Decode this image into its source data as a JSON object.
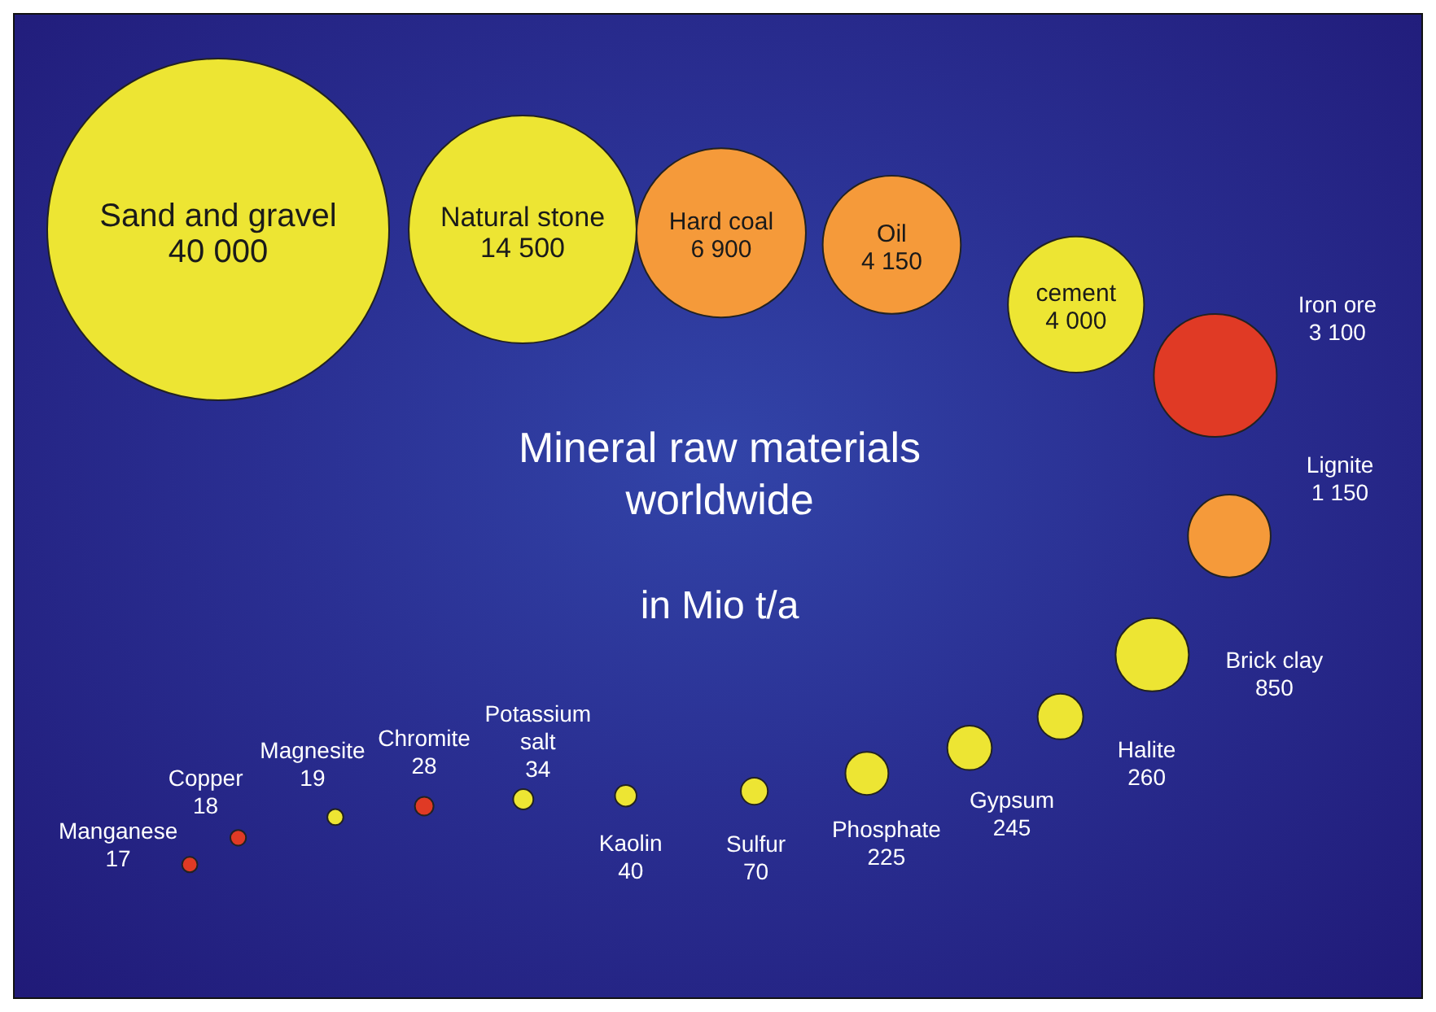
{
  "chart_data": {
    "type": "other",
    "title": "Mineral raw materials worldwide",
    "subtitle": "in Mio t/a",
    "categories": [
      "Sand and gravel",
      "Natural stone",
      "Hard coal",
      "Oil",
      "cement",
      "Iron ore",
      "Lignite",
      "Brick clay",
      "Halite",
      "Gypsum",
      "Phosphate",
      "Sulfur",
      "Kaolin",
      "Potassium salt",
      "Chromite",
      "Magnesite",
      "Copper",
      "Manganese"
    ],
    "values": [
      40000,
      14500,
      6900,
      4150,
      4000,
      3100,
      1150,
      850,
      260,
      245,
      225,
      70,
      40,
      34,
      28,
      19,
      18,
      17
    ],
    "value_labels": [
      "40 000",
      "14 500",
      "6 900",
      "4 150",
      "4 000",
      "3 100",
      "1 150",
      "850",
      "260",
      "245",
      "225",
      "70",
      "40",
      "34",
      "28",
      "19",
      "18",
      "17"
    ],
    "colors": [
      "#ede533",
      "#ede533",
      "#f59a3a",
      "#f59a3a",
      "#ede533",
      "#e03a25",
      "#f59a3a",
      "#ede533",
      "#ede533",
      "#ede533",
      "#ede533",
      "#ede533",
      "#ede533",
      "#ede533",
      "#e03a25",
      "#ede533",
      "#e03a25",
      "#e03a25"
    ]
  }
}
